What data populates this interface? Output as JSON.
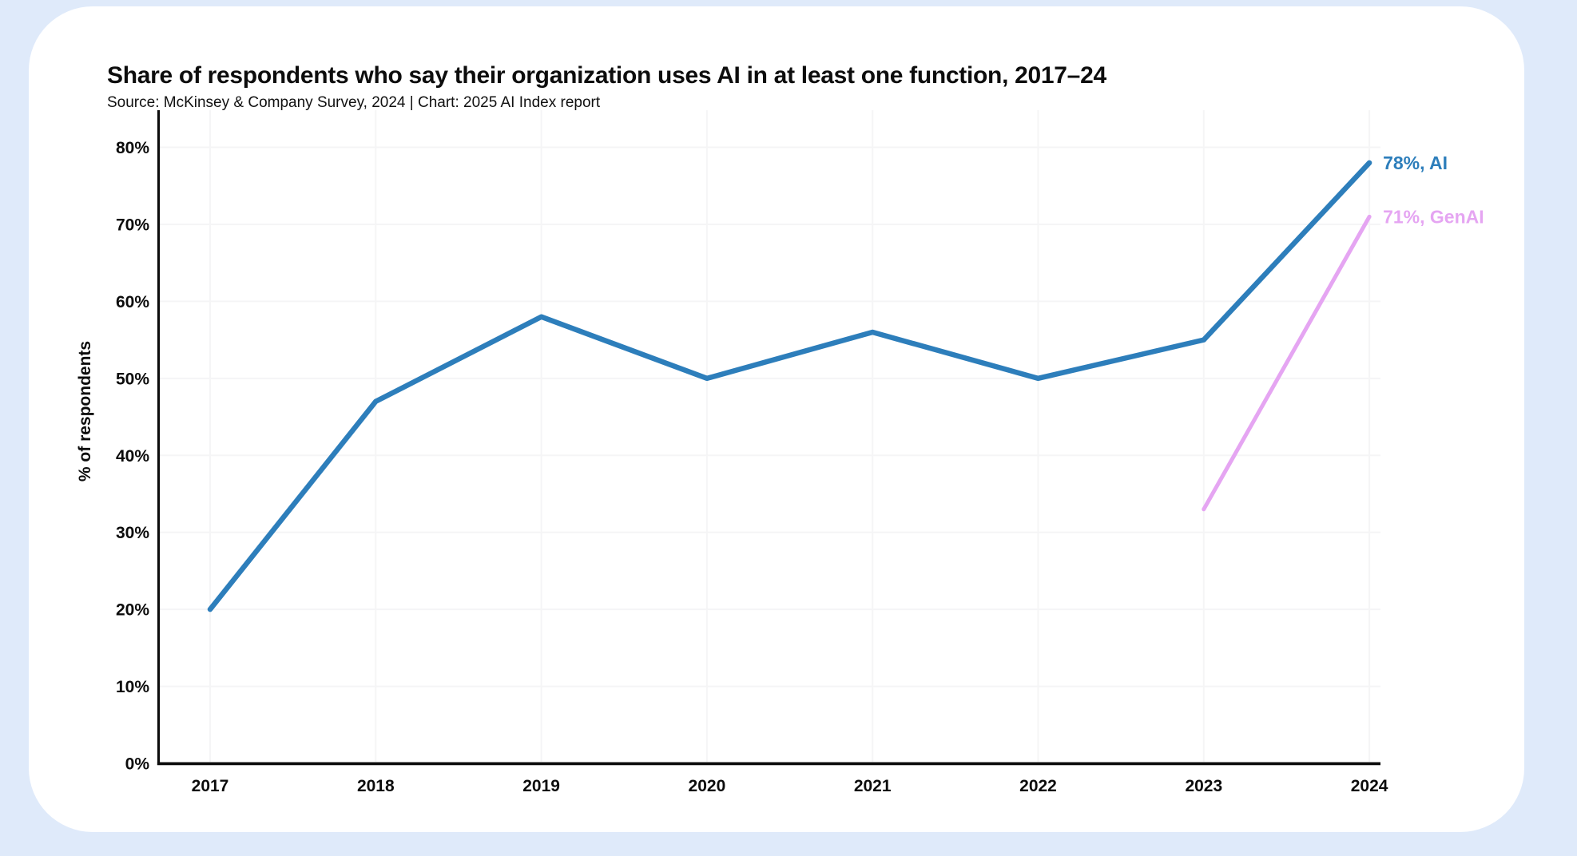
{
  "colors": {
    "background": "#dfeafa",
    "card": "#ffffff",
    "axis": "#0d0d0d",
    "grid": "#f5f5f6",
    "text": "#0d0d0d",
    "ai_blue": "#2d7ebb",
    "genai_pink": "#e5a5f2"
  },
  "chart_data": {
    "type": "line",
    "title": "Share of respondents who say their organization uses AI in at least one function, 2017–24",
    "source": "Source: McKinsey & Company Survey, 2024 | Chart: 2025 AI Index report",
    "xlabel": "",
    "ylabel": "% of respondents",
    "x_ticks": [
      2017,
      2018,
      2019,
      2020,
      2021,
      2022,
      2023,
      2024
    ],
    "x_tick_labels": [
      "2017",
      "2018",
      "2019",
      "2020",
      "2021",
      "2022",
      "2023",
      "2024"
    ],
    "y_ticks": [
      0,
      10,
      20,
      30,
      40,
      50,
      60,
      70,
      80
    ],
    "y_tick_suffix": "%",
    "ylim": [
      0,
      85
    ],
    "xlim": [
      2016.7,
      2024.1
    ],
    "grid": true,
    "legend_position": "end-of-line-labels",
    "series": [
      {
        "name": "AI",
        "color": "#2d7ebb",
        "line_width": 6.5,
        "end_label": "78%, AI",
        "years": [
          2017,
          2018,
          2019,
          2020,
          2021,
          2022,
          2023,
          2024
        ],
        "values": [
          20,
          47,
          58,
          50,
          56,
          50,
          55,
          78
        ]
      },
      {
        "name": "GenAI",
        "color": "#e5a5f2",
        "line_width": 5,
        "end_label": "71%, GenAI",
        "years": [
          2023,
          2024
        ],
        "values": [
          33,
          71
        ]
      }
    ]
  }
}
